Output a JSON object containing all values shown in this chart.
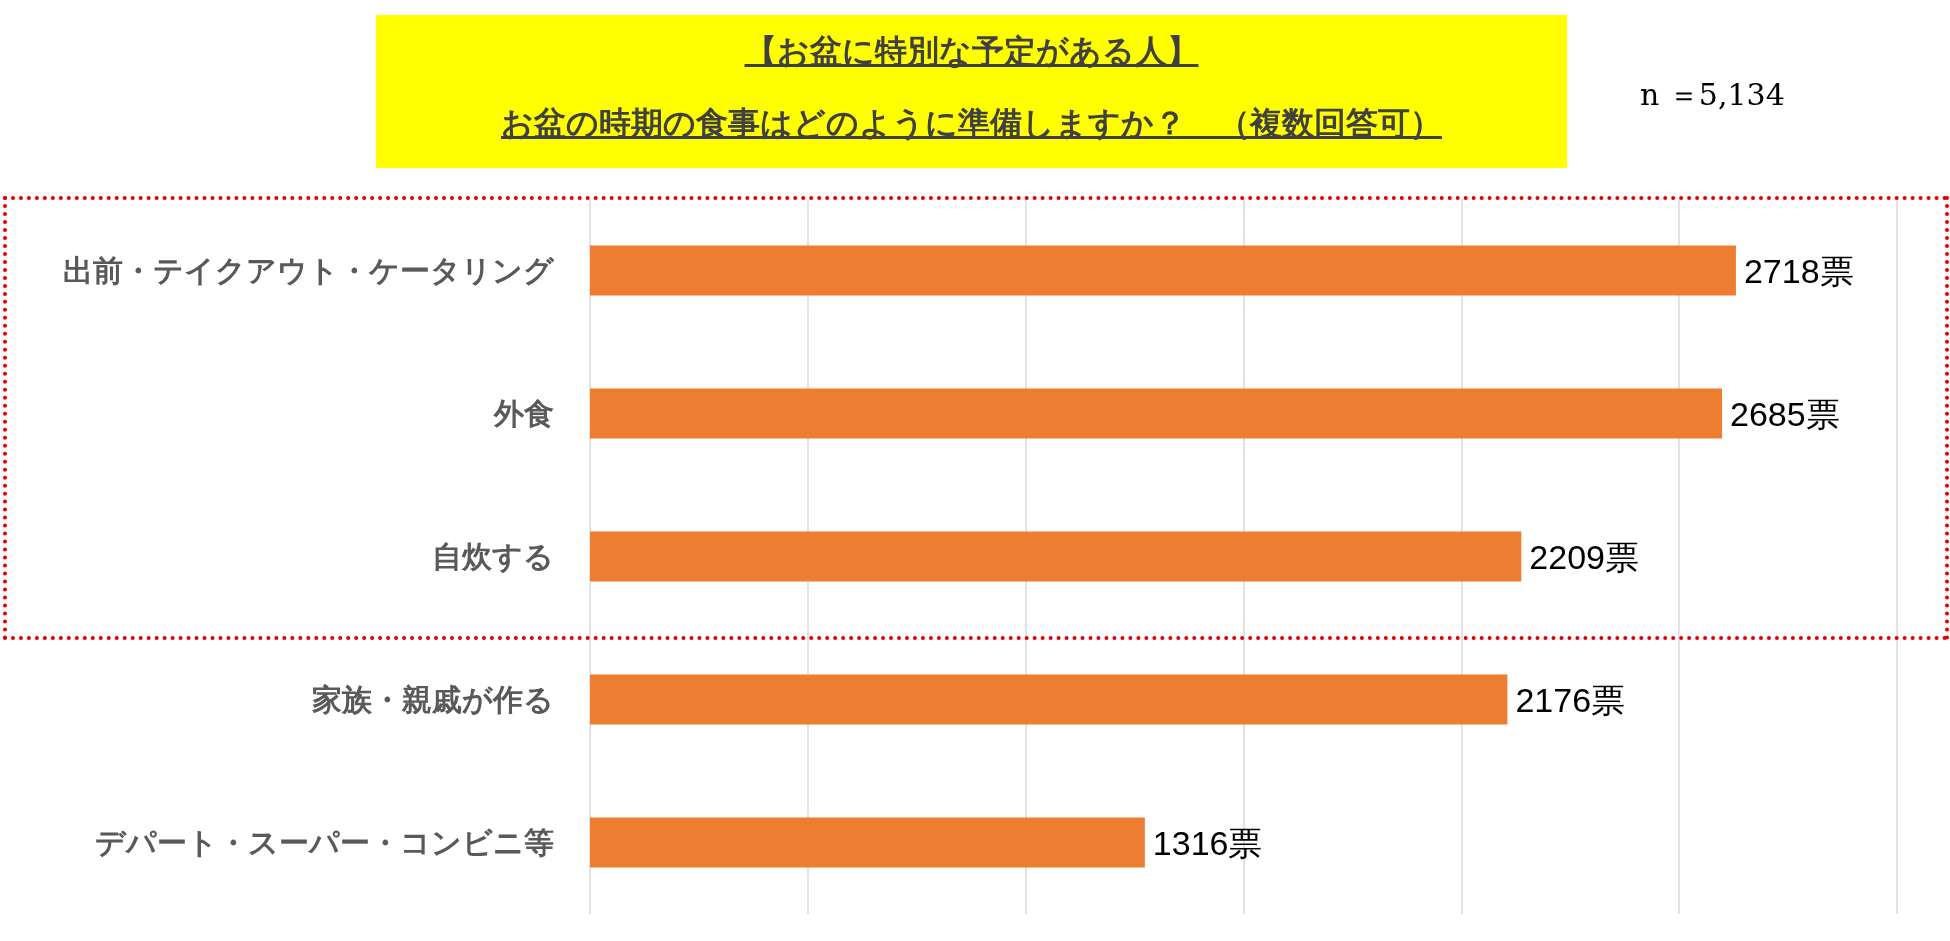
{
  "chart_data": {
    "type": "bar",
    "orientation": "horizontal",
    "title": "【お盆に特別な予定がある人】",
    "subtitle": "お盆の時期の食事はどのように準備しますか？　（複数回答可）",
    "annotations": [
      "n ＝5,134"
    ],
    "categories": [
      "出前・テイクアウト・ケータリング",
      "外食",
      "自炊する",
      "家族・親戚が作る",
      "デパート・スーパー・コンビニ等"
    ],
    "values": [
      2718,
      2685,
      2209,
      2176,
      1316
    ],
    "value_labels": [
      "2718票",
      "2685票",
      "2209票",
      "2176票",
      "1316票"
    ],
    "color": "#ed7d31",
    "xlim": [
      0,
      3100
    ],
    "xticks": [
      {
        "value": 0,
        "label": null
      },
      {
        "value": 517,
        "label": null
      },
      {
        "value": 1033,
        "label": null
      },
      {
        "value": 1550,
        "label": null
      },
      {
        "value": 2067,
        "label": null
      },
      {
        "value": 2583,
        "label": null
      },
      {
        "value": 3100,
        "label": null
      }
    ],
    "grid": "x",
    "tick_labels": "y"
  }
}
